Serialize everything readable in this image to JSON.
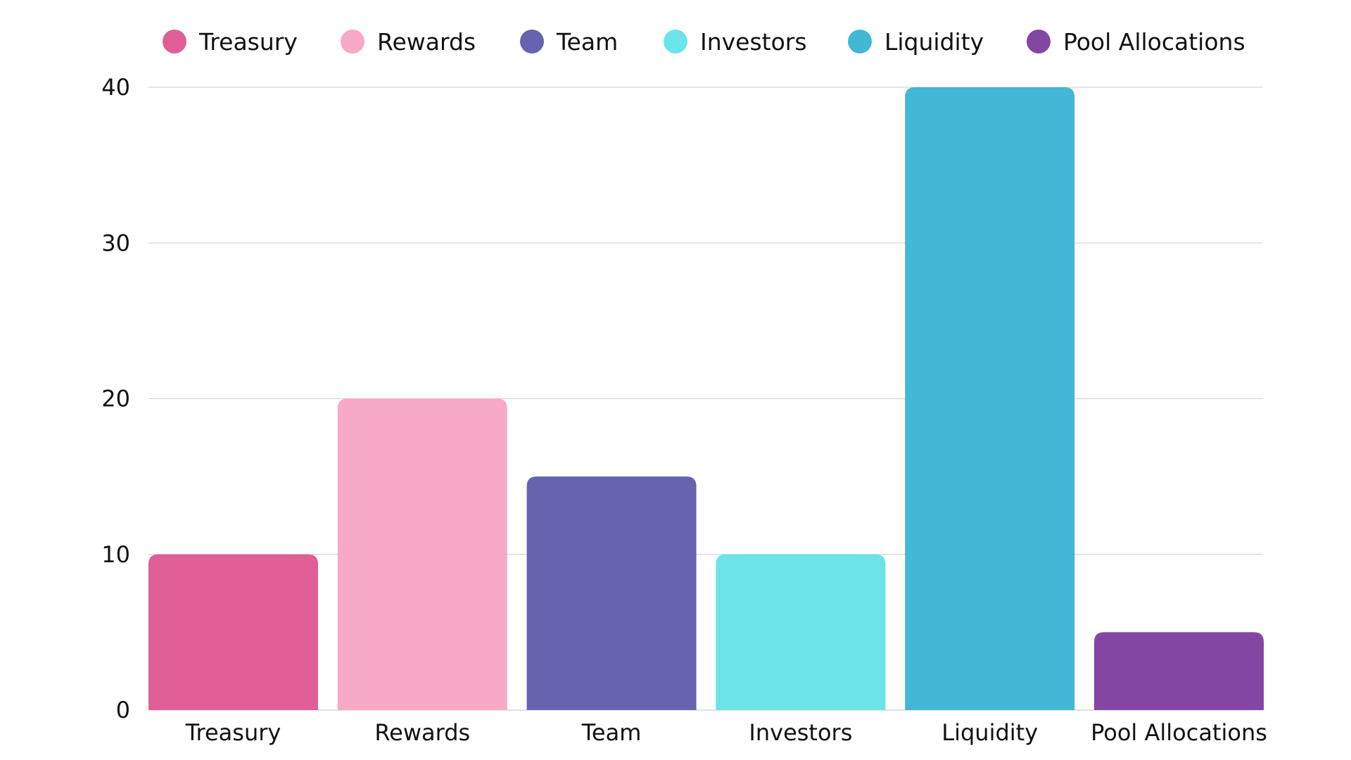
{
  "chart_data": {
    "type": "bar",
    "title": "",
    "xlabel": "",
    "ylabel": "",
    "categories": [
      "Treasury",
      "Rewards",
      "Team",
      "Investors",
      "Liquidity",
      "Pool Allocations"
    ],
    "values": [
      10,
      20,
      15,
      10,
      40,
      5
    ],
    "colors": [
      "#df5f96",
      "#f7a9c6",
      "#6763ae",
      "#6ce3e9",
      "#42b8d6",
      "#8446a3"
    ],
    "ylim": [
      0,
      40
    ],
    "yticks": [
      0,
      10,
      20,
      30,
      40
    ],
    "grid": true,
    "legend": {
      "placement": "top",
      "entries": [
        "Treasury",
        "Rewards",
        "Team",
        "Investors",
        "Liquidity",
        "Pool Allocations"
      ]
    }
  }
}
